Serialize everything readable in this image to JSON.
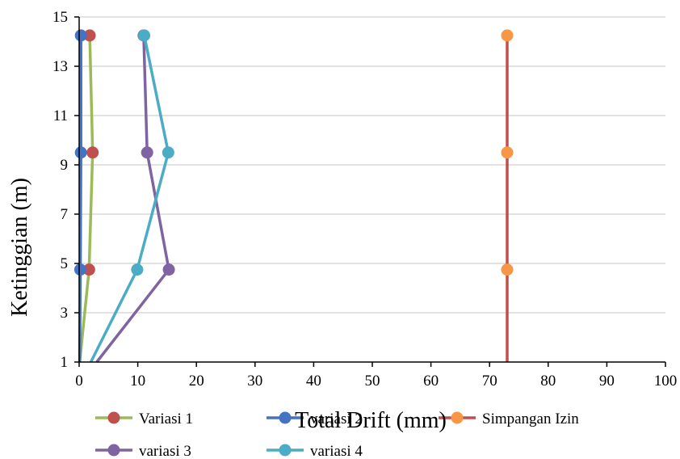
{
  "chart_data": {
    "type": "line",
    "xlabel": "Total Drift (mm)",
    "ylabel": "Ketinggian (m)",
    "xlim": [
      0,
      100
    ],
    "ylim": [
      1,
      15
    ],
    "xticks": [
      0,
      10,
      20,
      30,
      40,
      50,
      60,
      70,
      80,
      90,
      100
    ],
    "yticks": [
      1,
      3,
      5,
      7,
      9,
      11,
      13,
      15
    ],
    "grid": "horizontal",
    "legend_position": "bottom",
    "series": [
      {
        "name": "Variasi 1",
        "line_color": "#9BBB59",
        "marker_color": "#C0504D",
        "points": [
          [
            0.1,
            1
          ],
          [
            1.7,
            4.75
          ],
          [
            2.3,
            9.5
          ],
          [
            1.8,
            14.25
          ]
        ],
        "marker_indices": [
          1,
          2,
          3
        ]
      },
      {
        "name": "variasi 2",
        "line_color": "#4472C4",
        "marker_color": "#4472C4",
        "points": [
          [
            0.1,
            1
          ],
          [
            0.2,
            4.75
          ],
          [
            0.3,
            9.5
          ],
          [
            0.3,
            14.25
          ]
        ],
        "marker_indices": [
          1,
          2,
          3
        ]
      },
      {
        "name": "Simpangan Izin",
        "line_color": "#C0504D",
        "marker_color": "#F79646",
        "points": [
          [
            73,
            1
          ],
          [
            73,
            4.75
          ],
          [
            73,
            9.5
          ],
          [
            73,
            14.25
          ]
        ],
        "marker_indices": [
          1,
          2,
          3
        ]
      },
      {
        "name": "variasi 3",
        "line_color": "#8064A2",
        "marker_color": "#8064A2",
        "points": [
          [
            3,
            1
          ],
          [
            15.3,
            4.75
          ],
          [
            11.6,
            9.5
          ],
          [
            11,
            14.25
          ]
        ],
        "marker_indices": [
          1,
          2,
          3
        ]
      },
      {
        "name": "variasi 4",
        "line_color": "#4BACC6",
        "marker_color": "#4BACC6",
        "points": [
          [
            2,
            1
          ],
          [
            9.9,
            4.75
          ],
          [
            15.2,
            9.5
          ],
          [
            11.1,
            14.25
          ]
        ],
        "marker_indices": [
          1,
          2,
          3
        ]
      }
    ]
  }
}
